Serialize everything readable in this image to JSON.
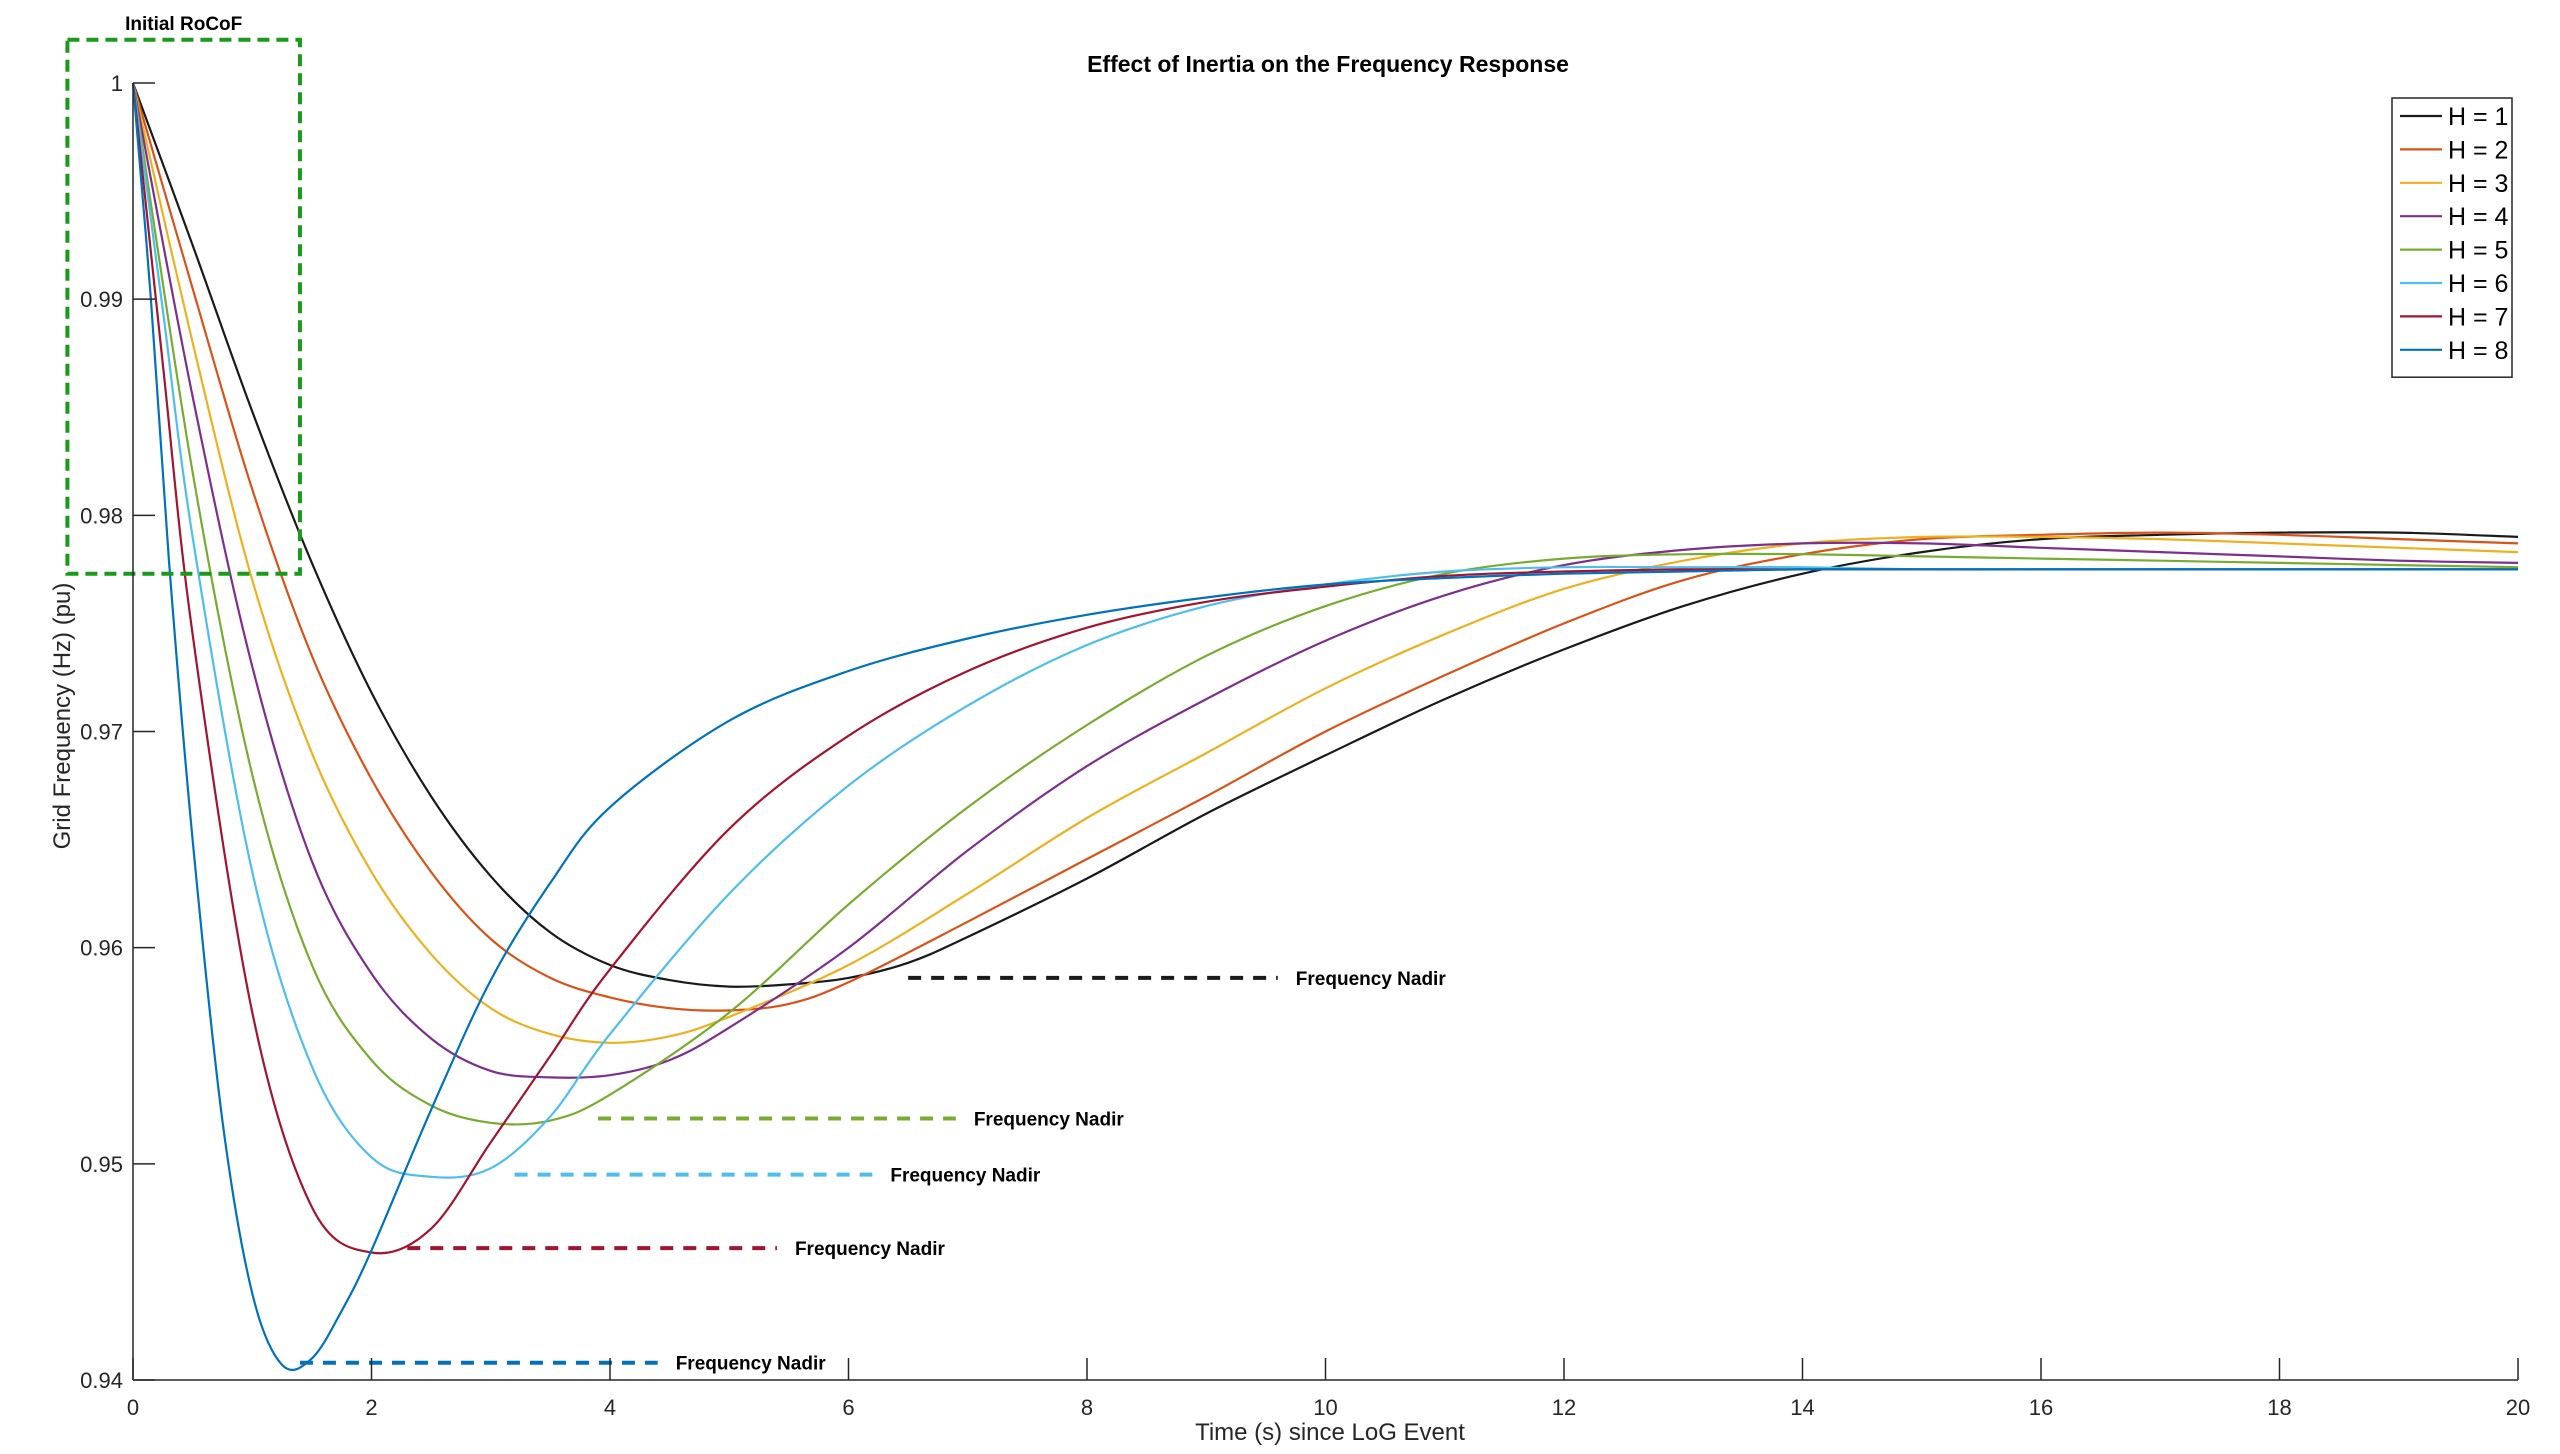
{
  "chart_data": {
    "type": "line",
    "title": "Effect of Inertia on the Frequency Response",
    "xlabel": "Time (s) since LoG Event",
    "ylabel": "Grid Frequency (Hz) (pu)",
    "xlim": [
      0,
      20
    ],
    "ylim": [
      0.94,
      1.0
    ],
    "xticks": [
      0,
      2,
      4,
      6,
      8,
      10,
      12,
      14,
      16,
      18,
      20
    ],
    "yticks": [
      0.94,
      0.95,
      0.96,
      0.97,
      0.98,
      0.99,
      1
    ],
    "xtick_labels": [
      "0",
      "2",
      "4",
      "6",
      "8",
      "10",
      "12",
      "14",
      "16",
      "18",
      "20"
    ],
    "ytick_labels": [
      "0.94",
      "0.95",
      "0.96",
      "0.97",
      "0.98",
      "0.99",
      "1"
    ],
    "grid": false,
    "legend_position": "top-right",
    "series": [
      {
        "name": "H = 1",
        "color": "#1a1a1a",
        "points": [
          [
            0,
            1.0
          ],
          [
            0.5,
            0.9925
          ],
          [
            1,
            0.9848
          ],
          [
            1.5,
            0.9778
          ],
          [
            2,
            0.9718
          ],
          [
            2.5,
            0.967
          ],
          [
            3,
            0.9633
          ],
          [
            3.5,
            0.9607
          ],
          [
            4,
            0.9592
          ],
          [
            4.5,
            0.9585
          ],
          [
            5,
            0.9582
          ],
          [
            5.5,
            0.9583
          ],
          [
            6,
            0.9586
          ],
          [
            6.5,
            0.9593
          ],
          [
            7,
            0.9605
          ],
          [
            8,
            0.9632
          ],
          [
            9,
            0.9662
          ],
          [
            10,
            0.9689
          ],
          [
            11,
            0.9715
          ],
          [
            12,
            0.9738
          ],
          [
            13,
            0.9758
          ],
          [
            14,
            0.9773
          ],
          [
            15,
            0.9783
          ],
          [
            16,
            0.9789
          ],
          [
            17,
            0.9791
          ],
          [
            18,
            0.9792
          ],
          [
            19,
            0.9792
          ],
          [
            20,
            0.979
          ]
        ]
      },
      {
        "name": "H = 2",
        "color": "#d95319",
        "points": [
          [
            0,
            1.0
          ],
          [
            0.5,
            0.9905
          ],
          [
            1,
            0.9812
          ],
          [
            1.5,
            0.9735
          ],
          [
            2,
            0.9678
          ],
          [
            2.5,
            0.9635
          ],
          [
            3,
            0.9604
          ],
          [
            3.5,
            0.9586
          ],
          [
            4,
            0.9577
          ],
          [
            4.5,
            0.9572
          ],
          [
            5,
            0.9571
          ],
          [
            5.5,
            0.9574
          ],
          [
            6,
            0.9584
          ],
          [
            7,
            0.9612
          ],
          [
            8,
            0.9641
          ],
          [
            9,
            0.967
          ],
          [
            10,
            0.97
          ],
          [
            11,
            0.9726
          ],
          [
            12,
            0.975
          ],
          [
            13,
            0.977
          ],
          [
            14,
            0.9782
          ],
          [
            15,
            0.9789
          ],
          [
            16,
            0.9791
          ],
          [
            17,
            0.9792
          ],
          [
            18,
            0.9791
          ],
          [
            19,
            0.9789
          ],
          [
            20,
            0.9787
          ]
        ]
      },
      {
        "name": "H = 3",
        "color": "#edb120",
        "points": [
          [
            0,
            1.0
          ],
          [
            0.5,
            0.988
          ],
          [
            1,
            0.977
          ],
          [
            1.5,
            0.969
          ],
          [
            2,
            0.9635
          ],
          [
            2.5,
            0.9597
          ],
          [
            3,
            0.9572
          ],
          [
            3.5,
            0.956
          ],
          [
            4,
            0.9556
          ],
          [
            4.5,
            0.9559
          ],
          [
            5,
            0.9568
          ],
          [
            6,
            0.9592
          ],
          [
            7,
            0.9625
          ],
          [
            8,
            0.966
          ],
          [
            9,
            0.969
          ],
          [
            10,
            0.972
          ],
          [
            11,
            0.9745
          ],
          [
            12,
            0.9766
          ],
          [
            13,
            0.9779
          ],
          [
            14,
            0.9787
          ],
          [
            15,
            0.979
          ],
          [
            16,
            0.979
          ],
          [
            17,
            0.9789
          ],
          [
            18,
            0.9787
          ],
          [
            19,
            0.9785
          ],
          [
            20,
            0.9783
          ]
        ]
      },
      {
        "name": "H = 4",
        "color": "#7e2f8e",
        "points": [
          [
            0,
            1.0
          ],
          [
            0.5,
            0.9855
          ],
          [
            1,
            0.973
          ],
          [
            1.5,
            0.964
          ],
          [
            2,
            0.9588
          ],
          [
            2.5,
            0.9558
          ],
          [
            3,
            0.9543
          ],
          [
            3.5,
            0.954
          ],
          [
            4,
            0.9541
          ],
          [
            4.5,
            0.9548
          ],
          [
            5,
            0.9563
          ],
          [
            6,
            0.96
          ],
          [
            7,
            0.9645
          ],
          [
            8,
            0.9684
          ],
          [
            9,
            0.9715
          ],
          [
            10,
            0.9742
          ],
          [
            11,
            0.9763
          ],
          [
            12,
            0.9777
          ],
          [
            13,
            0.9784
          ],
          [
            14,
            0.9787
          ],
          [
            15,
            0.9787
          ],
          [
            16,
            0.9785
          ],
          [
            17,
            0.9783
          ],
          [
            18,
            0.9781
          ],
          [
            19,
            0.9779
          ],
          [
            20,
            0.9778
          ]
        ]
      },
      {
        "name": "H = 5",
        "color": "#77ac30",
        "points": [
          [
            0,
            1.0
          ],
          [
            0.5,
            0.982
          ],
          [
            1,
            0.968
          ],
          [
            1.5,
            0.9592
          ],
          [
            2,
            0.9548
          ],
          [
            2.5,
            0.9527
          ],
          [
            3,
            0.9519
          ],
          [
            3.5,
            0.952
          ],
          [
            4,
            0.9532
          ],
          [
            5,
            0.957
          ],
          [
            6,
            0.962
          ],
          [
            7,
            0.9665
          ],
          [
            8,
            0.9703
          ],
          [
            9,
            0.9735
          ],
          [
            10,
            0.9758
          ],
          [
            11,
            0.9773
          ],
          [
            12,
            0.978
          ],
          [
            13,
            0.9782
          ],
          [
            14,
            0.9782
          ],
          [
            15,
            0.9781
          ],
          [
            16,
            0.978
          ],
          [
            17,
            0.9779
          ],
          [
            18,
            0.9778
          ],
          [
            19,
            0.9777
          ],
          [
            20,
            0.9776
          ]
        ]
      },
      {
        "name": "H = 6",
        "color": "#4dbeee",
        "points": [
          [
            0,
            1.0
          ],
          [
            0.25,
            0.9895
          ],
          [
            0.5,
            0.979
          ],
          [
            1,
            0.9635
          ],
          [
            1.5,
            0.9545
          ],
          [
            2,
            0.9503
          ],
          [
            2.5,
            0.9494
          ],
          [
            3,
            0.9498
          ],
          [
            3.5,
            0.9522
          ],
          [
            4,
            0.956
          ],
          [
            5,
            0.9625
          ],
          [
            6,
            0.9675
          ],
          [
            7,
            0.9712
          ],
          [
            8,
            0.974
          ],
          [
            9,
            0.9758
          ],
          [
            10,
            0.9768
          ],
          [
            11,
            0.9774
          ],
          [
            12,
            0.9776
          ],
          [
            13,
            0.9776
          ],
          [
            14,
            0.9776
          ],
          [
            15,
            0.9775
          ],
          [
            16,
            0.9775
          ],
          [
            17,
            0.9775
          ],
          [
            18,
            0.9775
          ],
          [
            19,
            0.9775
          ],
          [
            20,
            0.9775
          ]
        ]
      },
      {
        "name": "H = 7",
        "color": "#a2142f",
        "points": [
          [
            0,
            1.0
          ],
          [
            0.25,
            0.987
          ],
          [
            0.5,
            0.9745
          ],
          [
            1,
            0.957
          ],
          [
            1.5,
            0.948
          ],
          [
            2,
            0.9459
          ],
          [
            2.5,
            0.947
          ],
          [
            3,
            0.951
          ],
          [
            3.5,
            0.955
          ],
          [
            4,
            0.959
          ],
          [
            5,
            0.9655
          ],
          [
            6,
            0.9698
          ],
          [
            7,
            0.9728
          ],
          [
            8,
            0.9748
          ],
          [
            9,
            0.976
          ],
          [
            10,
            0.9767
          ],
          [
            11,
            0.9772
          ],
          [
            12,
            0.9774
          ],
          [
            13,
            0.9775
          ],
          [
            14,
            0.9775
          ],
          [
            15,
            0.9775
          ],
          [
            16,
            0.9775
          ],
          [
            17,
            0.9775
          ],
          [
            18,
            0.9775
          ],
          [
            19,
            0.9775
          ],
          [
            20,
            0.9775
          ]
        ]
      },
      {
        "name": "H = 8",
        "color": "#0072bd",
        "points": [
          [
            0,
            1.0
          ],
          [
            0.15,
            0.99
          ],
          [
            0.3,
            0.978
          ],
          [
            0.5,
            0.965
          ],
          [
            0.75,
            0.952
          ],
          [
            1,
            0.944
          ],
          [
            1.25,
            0.9407
          ],
          [
            1.5,
            0.941
          ],
          [
            1.75,
            0.9432
          ],
          [
            2,
            0.946
          ],
          [
            2.5,
            0.9525
          ],
          [
            3,
            0.9585
          ],
          [
            3.5,
            0.963
          ],
          [
            4,
            0.9665
          ],
          [
            5,
            0.9705
          ],
          [
            6,
            0.9728
          ],
          [
            7,
            0.9743
          ],
          [
            8,
            0.9754
          ],
          [
            9,
            0.9762
          ],
          [
            10,
            0.9768
          ],
          [
            11,
            0.9771
          ],
          [
            12,
            0.9773
          ],
          [
            13,
            0.9774
          ],
          [
            14,
            0.9775
          ],
          [
            15,
            0.9775
          ],
          [
            16,
            0.9775
          ],
          [
            17,
            0.9775
          ],
          [
            18,
            0.9775
          ],
          [
            19,
            0.9775
          ],
          [
            20,
            0.9775
          ]
        ]
      }
    ],
    "annotations": {
      "rocof": {
        "label": "Initial RoCoF",
        "color": "#1a9a1a",
        "x_range": [
          -0.55,
          1.4
        ],
        "y_range": [
          0.9773,
          1.002
        ]
      },
      "nadir_lines": [
        {
          "label": "Frequency Nadir",
          "color": "#1a1a1a",
          "x_start": 6.5,
          "x_end": 9.6,
          "y": 0.9586
        },
        {
          "label": "Frequency Nadir",
          "color": "#77ac30",
          "x_start": 3.9,
          "x_end": 6.9,
          "y": 0.9521
        },
        {
          "label": "Frequency Nadir",
          "color": "#4dbeee",
          "x_start": 3.2,
          "x_end": 6.2,
          "y": 0.9495
        },
        {
          "label": "Frequency Nadir",
          "color": "#a2142f",
          "x_start": 2.3,
          "x_end": 5.4,
          "y": 0.9461
        },
        {
          "label": "Frequency Nadir",
          "color": "#0072bd",
          "x_start": 1.4,
          "x_end": 4.4,
          "y": 0.9408
        }
      ]
    }
  }
}
